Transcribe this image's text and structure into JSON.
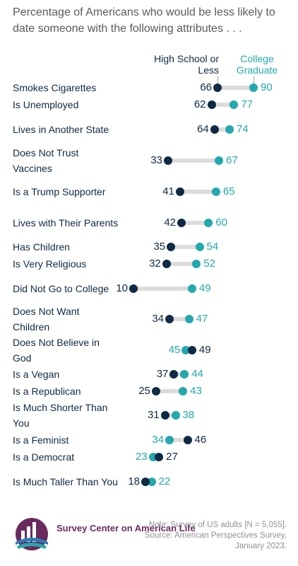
{
  "title": "Percentage of Americans who would be less likely to date someone with the following attributes . . .",
  "legend": {
    "high_school": "High School or Less",
    "college": "College Graduate"
  },
  "colors": {
    "high_school": "#0f2a44",
    "college": "#22a8ad",
    "connector": "#dcdcdc",
    "brand": "#6b2a5e"
  },
  "chart_data": {
    "type": "dumbbell",
    "series": [
      {
        "name": "High School or Less",
        "values": [
          66,
          62,
          64,
          33,
          41,
          42,
          35,
          32,
          10,
          34,
          49,
          37,
          25,
          31,
          46,
          27,
          18
        ]
      },
      {
        "name": "College Graduate",
        "values": [
          90,
          77,
          74,
          67,
          65,
          60,
          54,
          52,
          49,
          47,
          45,
          44,
          43,
          38,
          34,
          23,
          22
        ]
      }
    ],
    "categories": [
      "Smokes Cigarettes",
      "Is Unemployed",
      "Lives in Another State",
      "Does Not Trust Vaccines",
      "Is a Trump Supporter",
      "Lives with Their Parents",
      "Has Children",
      "Is Very Religious",
      "Did Not Go to College",
      "Does Not Want Children",
      "Does Not Believe in God",
      "Is a Vegan",
      "Is a Republican",
      "Is Much Shorter Than You",
      "Is a Feminist",
      "Is a Democrat",
      "Is Much Taller Than You"
    ]
  },
  "footer": {
    "logo_name": "Survey Center on American Life",
    "note_lines": [
      "Note: Survey of US adults [N = 5,055].",
      "Source: American Perspectives Survey,",
      "January 2023."
    ]
  }
}
